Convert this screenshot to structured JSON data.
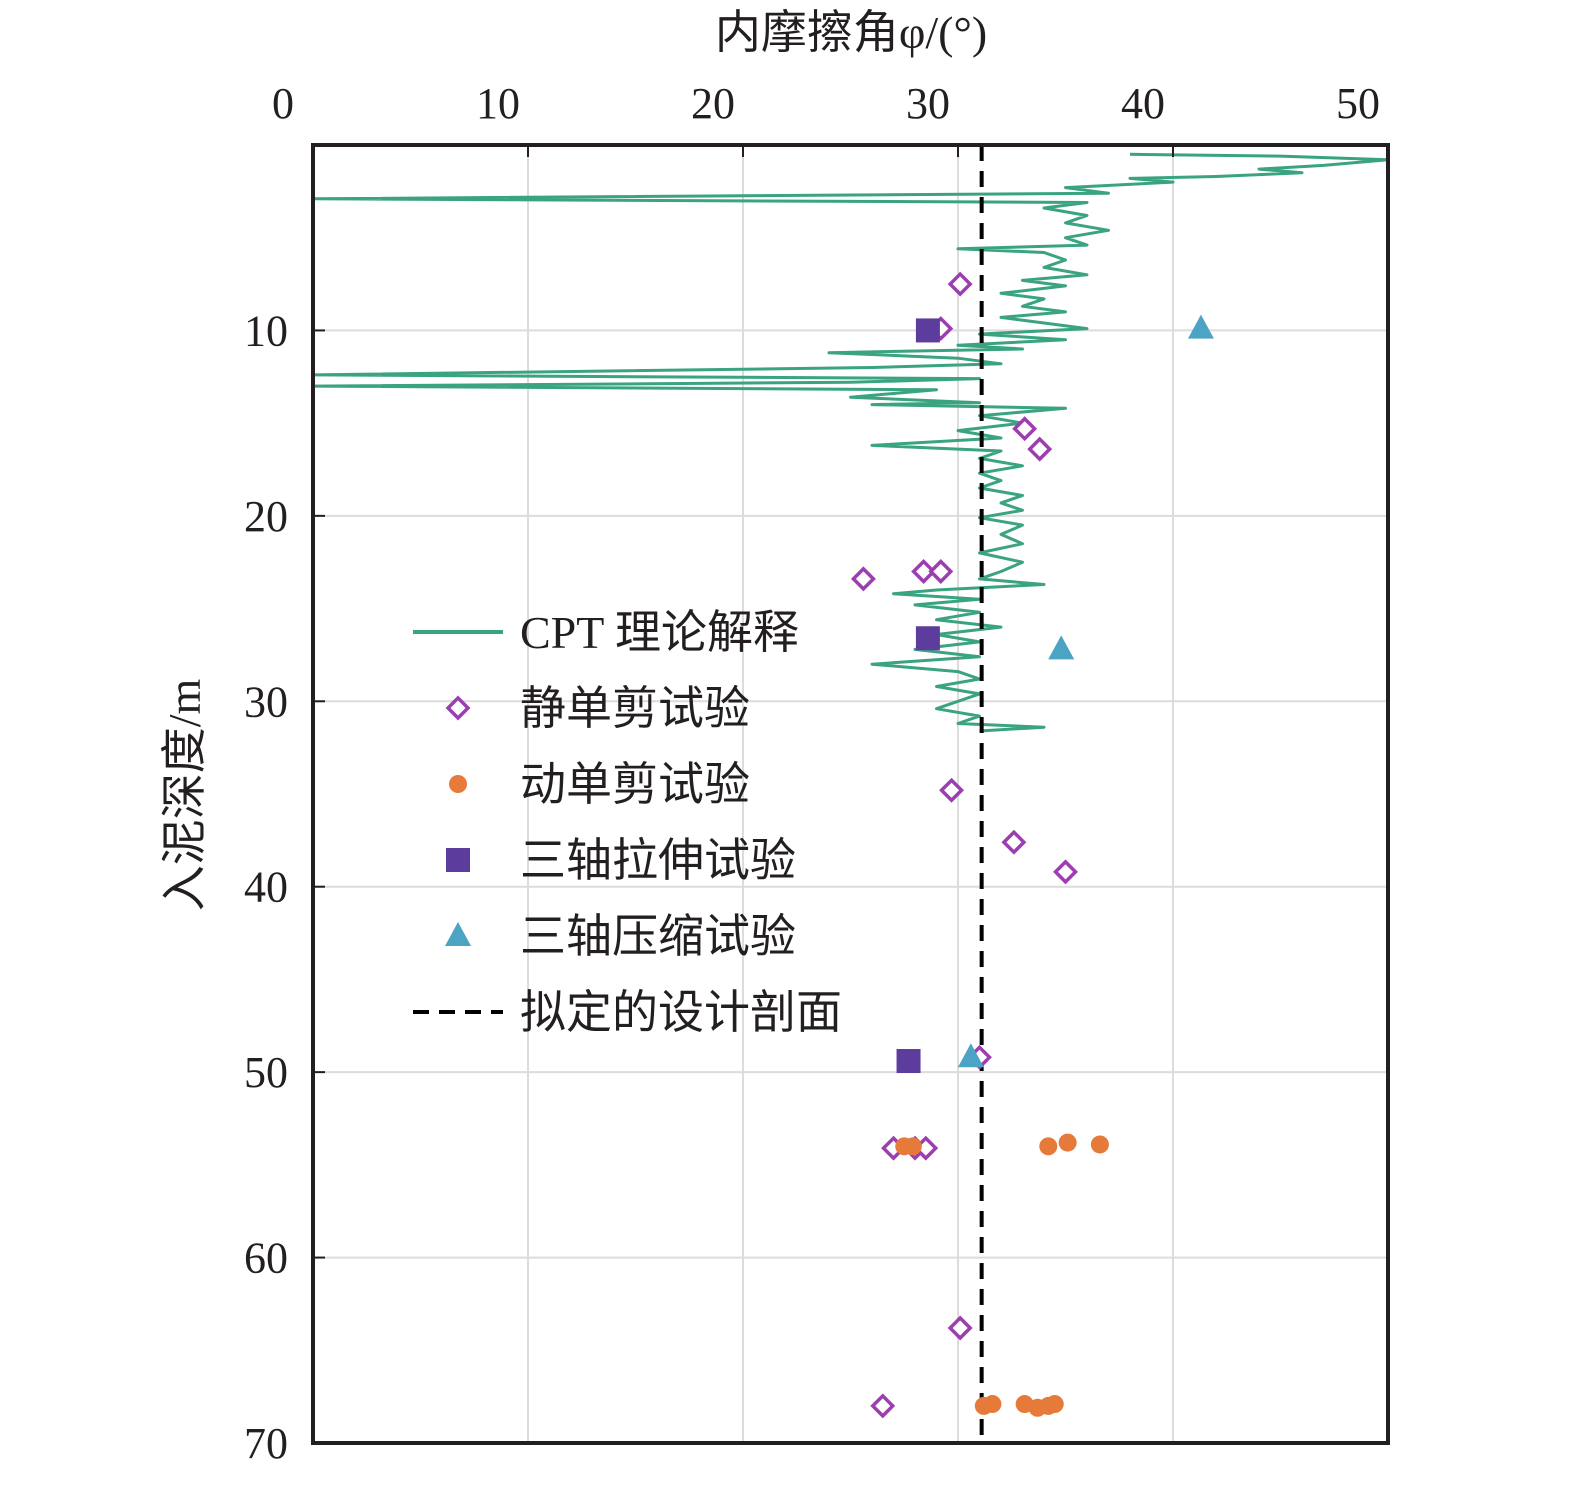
{
  "chart_data": {
    "type": "scatter",
    "x_label": "内摩擦角φ/(°)",
    "y_label": "入泥深度/m",
    "x_range": [
      0,
      50
    ],
    "y_range": [
      0,
      70
    ],
    "y_inverted": true,
    "x_axis_position": "top",
    "x_ticks": [
      "0",
      "10",
      "20",
      "30",
      "40",
      "50"
    ],
    "y_ticks": [
      "10",
      "20",
      "30",
      "40",
      "50",
      "60",
      "70"
    ],
    "grid": true,
    "legend_position": "left-middle",
    "legend": [
      {
        "label": "CPT 理论解释",
        "marker": "line",
        "color": "#3aa37f"
      },
      {
        "label": "静单剪试验",
        "marker": "open-diamond",
        "color": "#9b3fb0"
      },
      {
        "label": "动单剪试验",
        "marker": "filled-circle",
        "color": "#e57a3a"
      },
      {
        "label": "三轴拉伸试验",
        "marker": "filled-square",
        "color": "#5c3c9c"
      },
      {
        "label": "三轴压缩试验",
        "marker": "filled-triangle",
        "color": "#4da3c4"
      },
      {
        "label": "拟定的设计剖面",
        "marker": "dashed-line",
        "color": "#000000"
      }
    ],
    "series": [
      {
        "name": "CPT 理论解释",
        "type": "line",
        "color": "#3aa37f",
        "points": [
          [
            38,
            0.5
          ],
          [
            45,
            0.6
          ],
          [
            50,
            0.8
          ],
          [
            47,
            1.1
          ],
          [
            44,
            1.3
          ],
          [
            46,
            1.5
          ],
          [
            42,
            1.7
          ],
          [
            38,
            1.8
          ],
          [
            40,
            2.0
          ],
          [
            35,
            2.3
          ],
          [
            37,
            2.6
          ],
          [
            0,
            2.9
          ],
          [
            36,
            3.1
          ],
          [
            34,
            3.4
          ],
          [
            36,
            3.8
          ],
          [
            35,
            4.2
          ],
          [
            37,
            4.6
          ],
          [
            35,
            5.0
          ],
          [
            36,
            5.4
          ],
          [
            30,
            5.6
          ],
          [
            34,
            5.8
          ],
          [
            35,
            6.2
          ],
          [
            34,
            6.6
          ],
          [
            36,
            7.0
          ],
          [
            33,
            7.3
          ],
          [
            35,
            7.6
          ],
          [
            32,
            8.0
          ],
          [
            34,
            8.3
          ],
          [
            33,
            8.7
          ],
          [
            35,
            9.0
          ],
          [
            32,
            9.3
          ],
          [
            34,
            9.6
          ],
          [
            36,
            9.9
          ],
          [
            31,
            10.2
          ],
          [
            35,
            10.5
          ],
          [
            30,
            10.8
          ],
          [
            33,
            11.0
          ],
          [
            24,
            11.2
          ],
          [
            30,
            11.5
          ],
          [
            32,
            11.8
          ],
          [
            26,
            12.0
          ],
          [
            0,
            12.4
          ],
          [
            31,
            12.6
          ],
          [
            25,
            12.8
          ],
          [
            0,
            13.0
          ],
          [
            29,
            13.2
          ],
          [
            25,
            13.6
          ],
          [
            31,
            13.9
          ],
          [
            26,
            14.0
          ],
          [
            35,
            14.2
          ],
          [
            31,
            14.6
          ],
          [
            33,
            15.0
          ],
          [
            30,
            15.4
          ],
          [
            32,
            15.8
          ],
          [
            26,
            16.2
          ],
          [
            32,
            16.5
          ],
          [
            31,
            16.9
          ],
          [
            33,
            17.3
          ],
          [
            31,
            17.7
          ],
          [
            32,
            18.1
          ],
          [
            31,
            18.5
          ],
          [
            33,
            18.9
          ],
          [
            32,
            19.3
          ],
          [
            33,
            19.7
          ],
          [
            31,
            20.1
          ],
          [
            33,
            20.5
          ],
          [
            32,
            21.0
          ],
          [
            33,
            21.5
          ],
          [
            31,
            22.0
          ],
          [
            33,
            22.5
          ],
          [
            32,
            23.0
          ],
          [
            31,
            23.4
          ],
          [
            34,
            23.7
          ],
          [
            29,
            24.0
          ],
          [
            27,
            24.2
          ],
          [
            31,
            24.5
          ],
          [
            28,
            24.8
          ],
          [
            31,
            25.2
          ],
          [
            29,
            25.6
          ],
          [
            32,
            26.0
          ],
          [
            29,
            26.4
          ],
          [
            31,
            26.8
          ],
          [
            28,
            27.2
          ],
          [
            31,
            27.6
          ],
          [
            26,
            28.0
          ],
          [
            30,
            28.4
          ],
          [
            31,
            28.8
          ],
          [
            29,
            29.2
          ],
          [
            31,
            29.6
          ],
          [
            30,
            30.0
          ],
          [
            29,
            30.4
          ],
          [
            31,
            30.8
          ],
          [
            30,
            31.2
          ],
          [
            34,
            31.4
          ],
          [
            31,
            31.6
          ]
        ]
      },
      {
        "name": "静单剪试验",
        "type": "scatter",
        "marker": "open-diamond",
        "color": "#9b3fb0",
        "points": [
          [
            30.1,
            7.5
          ],
          [
            29.2,
            9.9
          ],
          [
            33.1,
            15.3
          ],
          [
            33.8,
            16.4
          ],
          [
            25.6,
            23.4
          ],
          [
            28.4,
            23.0
          ],
          [
            29.2,
            23.0
          ],
          [
            29.7,
            34.8
          ],
          [
            32.6,
            37.6
          ],
          [
            35.0,
            39.2
          ],
          [
            31.0,
            49.2
          ],
          [
            27.0,
            54.1
          ],
          [
            28.0,
            54.1
          ],
          [
            28.5,
            54.1
          ],
          [
            30.1,
            63.8
          ],
          [
            26.5,
            68.0
          ]
        ]
      },
      {
        "name": "动单剪试验",
        "type": "scatter",
        "marker": "filled-circle",
        "color": "#e57a3a",
        "points": [
          [
            27.5,
            54.0
          ],
          [
            27.9,
            54.0
          ],
          [
            34.2,
            54.0
          ],
          [
            35.1,
            53.8
          ],
          [
            36.6,
            53.9
          ],
          [
            31.2,
            68.0
          ],
          [
            31.6,
            67.9
          ],
          [
            33.1,
            67.9
          ],
          [
            33.7,
            68.1
          ],
          [
            34.2,
            68.0
          ],
          [
            34.5,
            67.9
          ]
        ]
      },
      {
        "name": "三轴拉伸试验",
        "type": "scatter",
        "marker": "filled-square",
        "color": "#5c3c9c",
        "points": [
          [
            28.6,
            10.0
          ],
          [
            28.6,
            26.6
          ],
          [
            27.7,
            49.4
          ]
        ]
      },
      {
        "name": "三轴压缩试验",
        "type": "scatter",
        "marker": "filled-triangle",
        "color": "#4da3c4",
        "points": [
          [
            41.3,
            9.9
          ],
          [
            34.8,
            27.2
          ],
          [
            30.6,
            49.2
          ]
        ]
      },
      {
        "name": "拟定的设计剖面",
        "type": "dashed-line",
        "color": "#000000",
        "x": 31.1
      }
    ]
  }
}
